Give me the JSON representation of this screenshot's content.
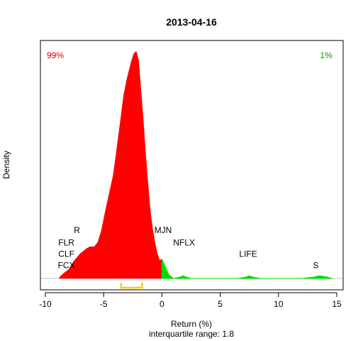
{
  "chart_data": {
    "type": "area",
    "title": "2013-04-16",
    "xlabel": "Return (%)",
    "subtitle": "interquartile range: 1.8",
    "ylabel": "Density",
    "xlim": [
      -10,
      15
    ],
    "xticks": [
      -10,
      -5,
      0,
      5,
      10,
      15
    ],
    "ylim": [
      0,
      1
    ],
    "pct_below_zero": "99%",
    "pct_above_zero": "1%",
    "colors": {
      "negative": "#ff0000",
      "positive": "#00dd00",
      "iqr": "#ffcc00",
      "pct_negative": "#dd0000",
      "pct_positive": "#009900"
    },
    "iqr": [
      -3.5,
      -1.7
    ],
    "density": {
      "x": [
        -8.8,
        -8.5,
        -8.0,
        -7.5,
        -7.0,
        -6.5,
        -6.2,
        -5.8,
        -5.5,
        -5.2,
        -5.0,
        -4.8,
        -4.5,
        -4.2,
        -4.0,
        -3.8,
        -3.5,
        -3.3,
        -3.0,
        -2.8,
        -2.6,
        -2.4,
        -2.2,
        -2.0,
        -1.8,
        -1.6,
        -1.4,
        -1.2,
        -1.0,
        -0.8,
        -0.6,
        -0.4,
        -0.2,
        0.0,
        0.3,
        0.6,
        1.0,
        1.5,
        1.8,
        2.1,
        2.5,
        3.0,
        5.0,
        6.5,
        7.2,
        7.5,
        7.8,
        8.5,
        12.0,
        13.0,
        13.5,
        14.0,
        14.6
      ],
      "y": [
        0.005,
        0.02,
        0.04,
        0.08,
        0.11,
        0.13,
        0.14,
        0.14,
        0.16,
        0.21,
        0.26,
        0.31,
        0.38,
        0.45,
        0.52,
        0.6,
        0.72,
        0.8,
        0.88,
        0.92,
        0.96,
        0.99,
        1.0,
        0.96,
        0.83,
        0.7,
        0.55,
        0.42,
        0.3,
        0.22,
        0.16,
        0.11,
        0.08,
        0.085,
        0.05,
        0.015,
        0.0,
        0.006,
        0.012,
        0.006,
        0.0,
        0.0,
        0.0,
        0.0,
        0.006,
        0.012,
        0.006,
        0.0,
        0.0,
        0.006,
        0.012,
        0.008,
        0.0
      ]
    },
    "annotations": [
      {
        "text": "R",
        "x": -7.3,
        "y": 0.2
      },
      {
        "text": "FLR",
        "x": -8.2,
        "y": 0.145
      },
      {
        "text": "CLF",
        "x": -8.2,
        "y": 0.095
      },
      {
        "text": "FCX",
        "x": -8.2,
        "y": 0.045
      },
      {
        "text": "MJN",
        "x": 0.1,
        "y": 0.2
      },
      {
        "text": "NFLX",
        "x": 1.9,
        "y": 0.145
      },
      {
        "text": "LIFE",
        "x": 7.4,
        "y": 0.095
      },
      {
        "text": "S",
        "x": 13.2,
        "y": 0.045
      }
    ]
  }
}
